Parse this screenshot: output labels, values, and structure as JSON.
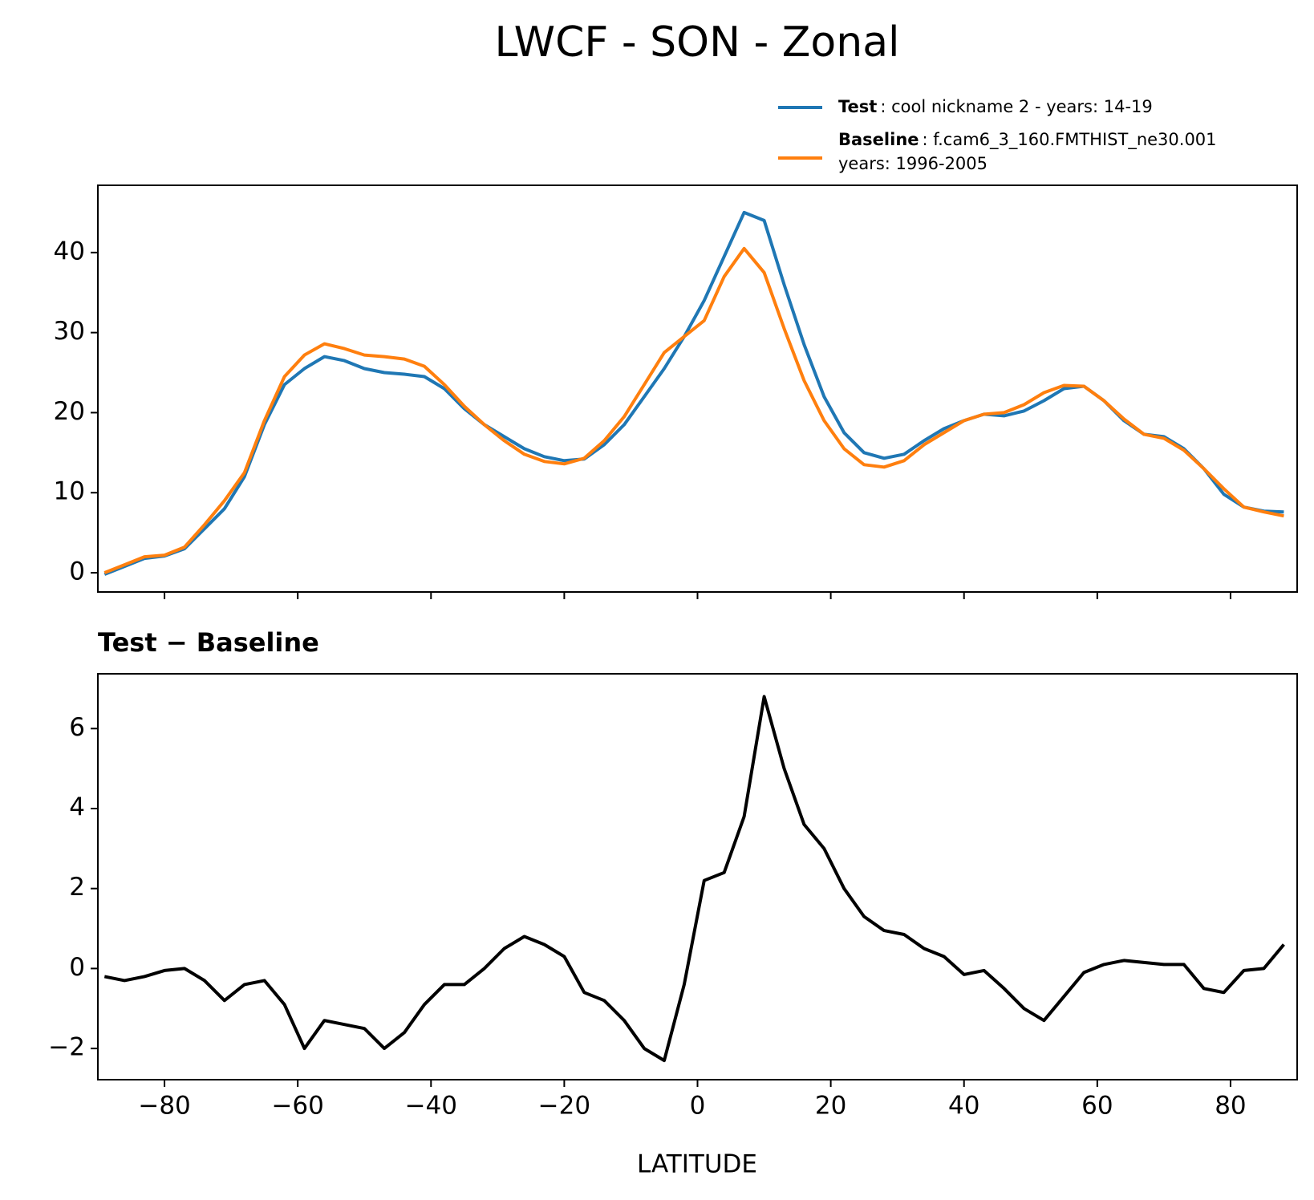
{
  "chart_data": [
    {
      "type": "line",
      "title": "LWCF - SON - Zonal",
      "x": [
        -89,
        -86,
        -83,
        -80,
        -77,
        -74,
        -71,
        -68,
        -65,
        -62,
        -59,
        -56,
        -53,
        -50,
        -47,
        -44,
        -41,
        -38,
        -35,
        -32,
        -29,
        -26,
        -23,
        -20,
        -17,
        -14,
        -11,
        -8,
        -5,
        -2,
        1,
        4,
        7,
        10,
        13,
        16,
        19,
        22,
        25,
        28,
        31,
        34,
        37,
        40,
        43,
        46,
        49,
        52,
        55,
        58,
        61,
        64,
        67,
        70,
        73,
        76,
        79,
        82,
        85,
        88
      ],
      "series": [
        {
          "name": "Test",
          "label": [
            ": cool nickname 2 - years: 14-19"
          ],
          "color": "#1f77b4",
          "values": [
            -0.2,
            0.8,
            1.8,
            2.1,
            3,
            5.5,
            8,
            12,
            18.5,
            23.5,
            25.5,
            27,
            26.5,
            25.5,
            25,
            24.8,
            24.5,
            23,
            20.5,
            18.5,
            17,
            15.5,
            14.5,
            14,
            14.2,
            16,
            18.5,
            22,
            25.5,
            29.5,
            34,
            39.5,
            45,
            44,
            36,
            28.5,
            22,
            17.5,
            15,
            14.3,
            14.8,
            16.5,
            18,
            19,
            19.8,
            19.6,
            20.2,
            21.5,
            23,
            23.3,
            21.5,
            19,
            17.3,
            17,
            15.5,
            13,
            9.8,
            8.2,
            7.7,
            7.6
          ]
        },
        {
          "name": "Baseline",
          "label": [
            ": f.cam6_3_160.FMTHIST_ne30.001",
            "years: 1996-2005"
          ],
          "color": "#ff7f0e",
          "values": [
            0,
            1,
            2,
            2.2,
            3.2,
            6,
            9,
            12.5,
            19,
            24.5,
            27.2,
            28.6,
            28,
            27.2,
            27,
            26.7,
            25.8,
            23.5,
            20.8,
            18.5,
            16.5,
            14.8,
            13.9,
            13.6,
            14.3,
            16.5,
            19.5,
            23.5,
            27.5,
            29.5,
            31.5,
            37,
            40.5,
            37.5,
            30.5,
            24,
            19,
            15.5,
            13.5,
            13.2,
            14,
            16,
            17.5,
            19,
            19.8,
            20,
            21,
            22.5,
            23.4,
            23.3,
            21.5,
            19.2,
            17.3,
            16.8,
            15.3,
            13,
            10.5,
            8.2,
            7.6,
            7.1
          ]
        }
      ],
      "xlim": [
        -90,
        90
      ],
      "ylim": [
        -2.4,
        48.4
      ],
      "yticks": [
        0,
        10,
        20,
        30,
        40
      ]
    },
    {
      "type": "line",
      "title": "Test − Baseline",
      "xlabel": "LATITUDE",
      "x": [
        -89,
        -86,
        -83,
        -80,
        -77,
        -74,
        -71,
        -68,
        -65,
        -62,
        -59,
        -56,
        -53,
        -50,
        -47,
        -44,
        -41,
        -38,
        -35,
        -32,
        -29,
        -26,
        -23,
        -20,
        -17,
        -14,
        -11,
        -8,
        -5,
        -2,
        1,
        4,
        7,
        10,
        13,
        16,
        19,
        22,
        25,
        28,
        31,
        34,
        37,
        40,
        43,
        46,
        49,
        52,
        55,
        58,
        61,
        64,
        67,
        70,
        73,
        76,
        79,
        82,
        85,
        88
      ],
      "series": [
        {
          "color": "#000000",
          "values": [
            -0.2,
            -0.3,
            -0.2,
            -0.05,
            0,
            -0.3,
            -0.8,
            -0.4,
            -0.3,
            -0.9,
            -2,
            -1.3,
            -1.4,
            -1.5,
            -2,
            -1.6,
            -0.9,
            -0.4,
            -0.4,
            0,
            0.5,
            0.8,
            0.6,
            0.3,
            -0.6,
            -0.8,
            -1.3,
            -2,
            -2.3,
            -0.4,
            2.2,
            2.4,
            3.8,
            6.8,
            5,
            3.6,
            3,
            2,
            1.3,
            0.95,
            0.85,
            0.5,
            0.3,
            -0.15,
            -0.05,
            -0.5,
            -1,
            -1.3,
            -0.7,
            -0.1,
            0.1,
            0.2,
            0.15,
            0.1,
            0.1,
            -0.5,
            -0.6,
            -0.05,
            0,
            0.6
          ]
        }
      ],
      "xlim": [
        -90,
        90
      ],
      "ylim": [
        -2.78,
        7.37
      ],
      "xticks": [
        {
          "value": -80,
          "label": "−80"
        },
        {
          "value": -60,
          "label": "−60"
        },
        {
          "value": -40,
          "label": "−40"
        },
        {
          "value": -20,
          "label": "−20"
        },
        0,
        20,
        40,
        60,
        80
      ],
      "yticks": [
        {
          "value": -2,
          "label": "−2"
        },
        0,
        2,
        4,
        6
      ]
    }
  ]
}
